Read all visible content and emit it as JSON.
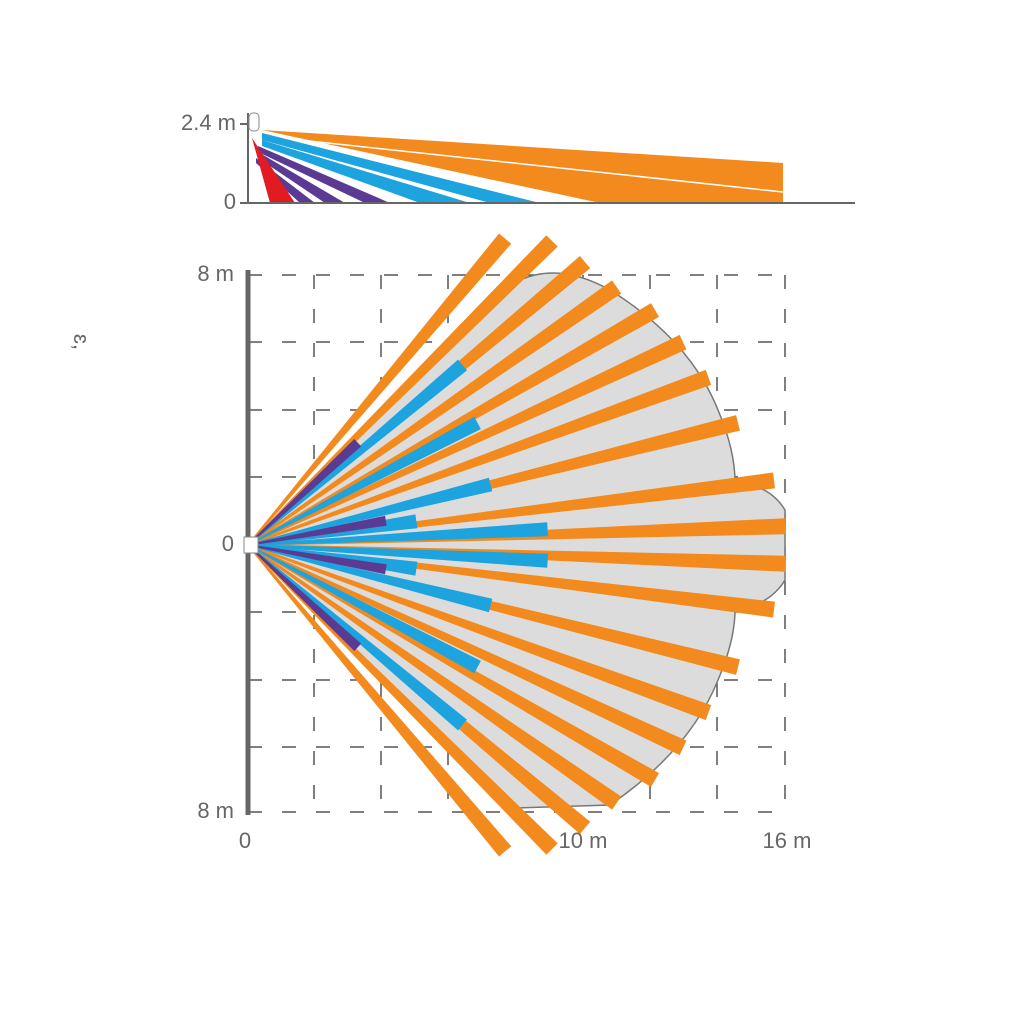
{
  "side_view": {
    "height_label": "2.4 m",
    "ground_label": "0"
  },
  "top_view": {
    "y_labels": [
      "8 m",
      "0",
      "8 m"
    ],
    "x_labels": [
      "0",
      "10 m",
      "16 m"
    ]
  },
  "side_mark": "ɛ,"
}
